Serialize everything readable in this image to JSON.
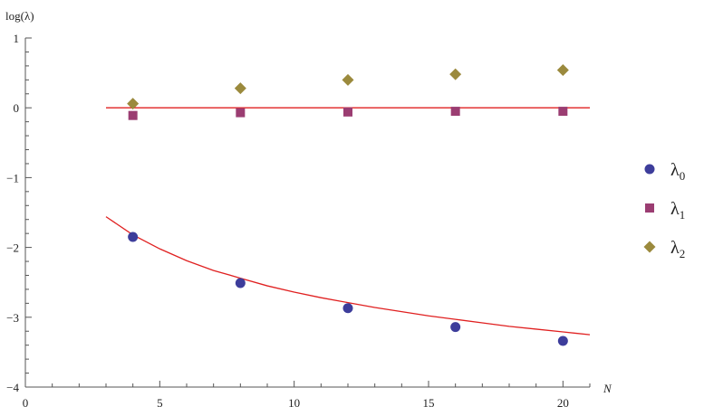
{
  "chart_data": {
    "type": "scatter",
    "xlabel": "N",
    "ylabel": "log(λ)",
    "xlim": [
      0,
      21
    ],
    "ylim": [
      -4,
      1
    ],
    "xticks": [
      "0",
      "5",
      "10",
      "15",
      "20"
    ],
    "xtick_values": [
      0,
      5,
      10,
      15,
      20
    ],
    "yticks": [
      "1",
      "0",
      "−1",
      "−2",
      "−3",
      "−4"
    ],
    "ytick_values": [
      1,
      0,
      -1,
      -2,
      -3,
      -4
    ],
    "legend_position": "right",
    "series": [
      {
        "name": "λ",
        "sub": "0",
        "marker": "circle",
        "color": "#3d3d9b",
        "x": [
          4,
          8,
          12,
          16,
          20
        ],
        "y": [
          -1.85,
          -2.51,
          -2.87,
          -3.14,
          -3.34
        ]
      },
      {
        "name": "λ",
        "sub": "1",
        "marker": "square",
        "color": "#9b3d72",
        "x": [
          4,
          8,
          12,
          16,
          20
        ],
        "y": [
          -0.11,
          -0.07,
          -0.06,
          -0.05,
          -0.05
        ]
      },
      {
        "name": "λ",
        "sub": "2",
        "marker": "diamond",
        "color": "#9b8a3d",
        "x": [
          4,
          8,
          12,
          16,
          20
        ],
        "y": [
          0.06,
          0.28,
          0.4,
          0.48,
          0.54
        ]
      }
    ],
    "fit_lines": [
      {
        "color": "#e02020",
        "x": [
          3,
          21
        ],
        "y": [
          0,
          0
        ]
      },
      {
        "color": "#e02020",
        "x": [
          3,
          4,
          5,
          6,
          7,
          8,
          9,
          10,
          11,
          12,
          13,
          14,
          15,
          16,
          17,
          18,
          19,
          20,
          21
        ],
        "y": [
          -1.56,
          -1.82,
          -2.02,
          -2.19,
          -2.33,
          -2.44,
          -2.55,
          -2.64,
          -2.72,
          -2.79,
          -2.86,
          -2.92,
          -2.98,
          -3.03,
          -3.08,
          -3.13,
          -3.17,
          -3.21,
          -3.25
        ]
      }
    ]
  }
}
